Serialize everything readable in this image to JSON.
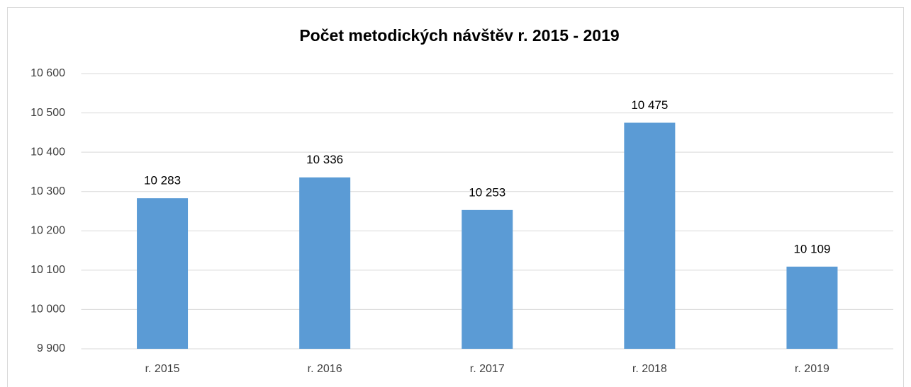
{
  "chart_data": {
    "type": "bar",
    "title": "Počet metodických návštěv r. 2015 - 2019",
    "categories": [
      "r. 2015",
      "r. 2016",
      "r. 2017",
      "r. 2018",
      "r. 2019"
    ],
    "values": [
      10283,
      10336,
      10253,
      10475,
      10109
    ],
    "value_labels": [
      "10 283",
      "10 336",
      "10 253",
      "10 475",
      "10 109"
    ],
    "color": "#5b9bd5",
    "ylim": [
      9900,
      10600
    ],
    "yticks": [
      {
        "value": 9900,
        "label": "9 900"
      },
      {
        "value": 10000,
        "label": "10 000"
      },
      {
        "value": 10100,
        "label": "10 100"
      },
      {
        "value": 10200,
        "label": "10 200"
      },
      {
        "value": 10300,
        "label": "10 300"
      },
      {
        "value": 10400,
        "label": "10 400"
      },
      {
        "value": 10500,
        "label": "10 500"
      },
      {
        "value": 10600,
        "label": "10 600"
      }
    ],
    "grid": true
  }
}
